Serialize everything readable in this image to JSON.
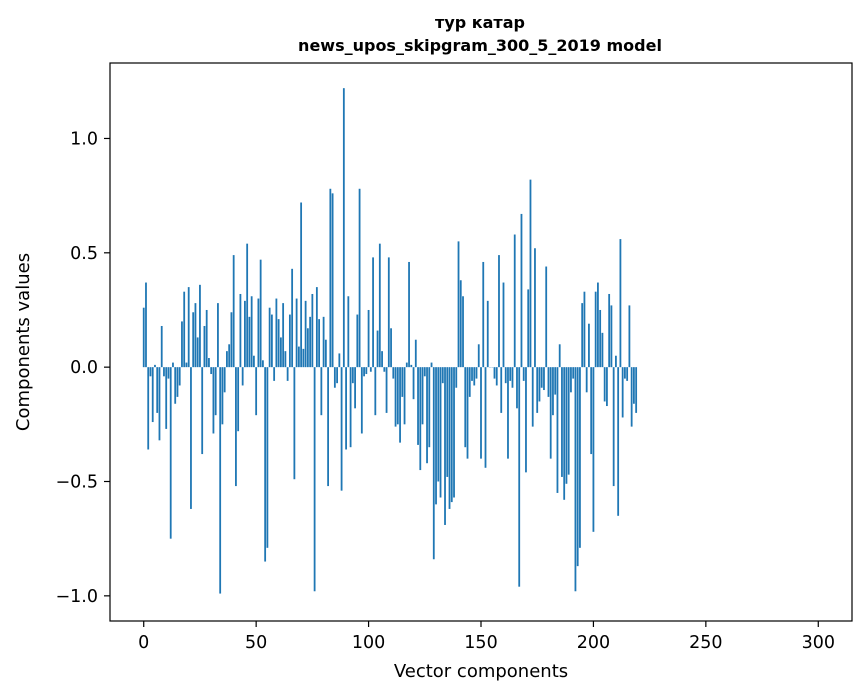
{
  "chart_data": {
    "type": "bar",
    "title_line1": "тур катар",
    "title_line2": "news_upos_skipgram_300_5_2019 model",
    "xlabel": "Vector components",
    "ylabel": "Components values",
    "xlim": [
      -15,
      315
    ],
    "ylim": [
      -1.11,
      1.33
    ],
    "x_ticks": [
      0,
      50,
      100,
      150,
      200,
      250,
      300
    ],
    "x_tick_labels": [
      "0",
      "50",
      "100",
      "150",
      "200",
      "250",
      "300"
    ],
    "y_ticks": [
      1.0,
      0.5,
      0.0,
      -0.5,
      -1.0
    ],
    "y_tick_labels": [
      "1.0",
      "0.5",
      "0.0",
      "−0.5",
      "−1.0"
    ],
    "bar_color": "#1f77b4",
    "grid": false,
    "values": [
      0.26,
      0.37,
      -0.36,
      -0.04,
      -0.24,
      0.01,
      -0.2,
      -0.32,
      0.18,
      -0.04,
      -0.27,
      -0.05,
      -0.75,
      0.02,
      -0.16,
      -0.13,
      -0.08,
      0.2,
      0.33,
      0.02,
      0.35,
      -0.62,
      0.24,
      0.28,
      0.13,
      0.36,
      -0.38,
      0.18,
      0.25,
      0.04,
      -0.03,
      -0.29,
      -0.21,
      0.28,
      -0.99,
      -0.25,
      -0.11,
      0.07,
      0.1,
      0.24,
      0.49,
      -0.52,
      -0.28,
      0.32,
      -0.08,
      0.29,
      0.54,
      0.22,
      0.31,
      0.05,
      -0.21,
      0.3,
      0.47,
      0.03,
      -0.85,
      -0.79,
      0.26,
      0.23,
      -0.06,
      0.3,
      0.21,
      0.13,
      0.28,
      0.07,
      -0.06,
      0.23,
      0.43,
      -0.49,
      0.3,
      0.09,
      0.72,
      0.08,
      0.29,
      0.17,
      0.22,
      0.32,
      -0.98,
      0.35,
      0.21,
      -0.21,
      0.22,
      0.12,
      -0.52,
      0.78,
      0.76,
      -0.09,
      -0.07,
      0.06,
      -0.54,
      1.22,
      -0.36,
      0.31,
      -0.35,
      -0.07,
      -0.18,
      0.23,
      0.78,
      -0.29,
      -0.04,
      -0.03,
      0.25,
      -0.02,
      0.48,
      -0.21,
      0.16,
      0.54,
      0.07,
      -0.02,
      -0.2,
      0.48,
      0.17,
      -0.05,
      -0.26,
      -0.25,
      -0.33,
      -0.13,
      -0.25,
      0.02,
      0.46,
      0.01,
      -0.14,
      0.12,
      -0.34,
      -0.45,
      -0.25,
      -0.04,
      -0.42,
      -0.35,
      0.02,
      -0.84,
      -0.6,
      -0.5,
      -0.57,
      -0.07,
      -0.69,
      -0.48,
      -0.62,
      -0.59,
      -0.57,
      -0.09,
      0.55,
      0.38,
      0.31,
      -0.35,
      -0.4,
      -0.13,
      -0.06,
      -0.08,
      -0.05,
      0.1,
      -0.4,
      0.46,
      -0.44,
      0.29,
      0.0,
      0.0,
      -0.05,
      -0.08,
      0.49,
      -0.2,
      0.37,
      -0.07,
      -0.4,
      -0.06,
      -0.09,
      0.58,
      -0.18,
      -0.96,
      0.67,
      -0.06,
      -0.46,
      0.34,
      0.82,
      -0.26,
      0.52,
      -0.2,
      -0.15,
      -0.09,
      -0.1,
      0.44,
      -0.13,
      -0.4,
      -0.21,
      -0.12,
      -0.55,
      0.1,
      -0.48,
      -0.58,
      -0.51,
      -0.47,
      -0.11,
      -0.05,
      -0.98,
      -0.87,
      -0.79,
      0.28,
      0.33,
      -0.11,
      0.19,
      -0.38,
      -0.72,
      0.33,
      0.37,
      0.25,
      0.15,
      -0.15,
      -0.17,
      0.32,
      0.27,
      -0.52,
      0.05,
      -0.65,
      0.56,
      -0.22,
      -0.05,
      -0.06,
      0.27,
      -0.26,
      -0.16,
      -0.2
    ]
  }
}
